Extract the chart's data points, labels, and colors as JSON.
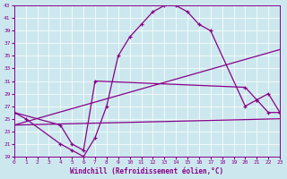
{
  "xlabel": "Windchill (Refroidissement éolien,°C)",
  "bg_color": "#cce8ee",
  "line_color": "#880088",
  "xlim": [
    0,
    23
  ],
  "ylim": [
    19,
    43
  ],
  "xticks": [
    0,
    1,
    2,
    3,
    4,
    5,
    6,
    7,
    8,
    9,
    10,
    11,
    12,
    13,
    14,
    15,
    16,
    17,
    18,
    19,
    20,
    21,
    22,
    23
  ],
  "yticks": [
    19,
    21,
    23,
    25,
    27,
    29,
    31,
    33,
    35,
    37,
    39,
    41,
    43
  ],
  "series": [
    {
      "x": [
        0,
        1,
        4,
        5,
        6,
        7,
        8,
        9,
        10,
        11,
        12,
        13,
        14,
        15,
        16,
        17,
        20,
        21,
        22,
        23
      ],
      "y": [
        26,
        25,
        21,
        20,
        19,
        22,
        27,
        35,
        38,
        40,
        42,
        43,
        43,
        42,
        40,
        39,
        27,
        28,
        26,
        26
      ],
      "marker": true
    },
    {
      "x": [
        0,
        23
      ],
      "y": [
        24,
        36
      ],
      "marker": false
    },
    {
      "x": [
        0,
        23
      ],
      "y": [
        24,
        25
      ],
      "marker": false
    },
    {
      "x": [
        0,
        4,
        5,
        6,
        7,
        20,
        21,
        22,
        23
      ],
      "y": [
        26,
        24,
        21,
        20,
        31,
        30,
        28,
        29,
        26
      ],
      "marker": true
    }
  ]
}
